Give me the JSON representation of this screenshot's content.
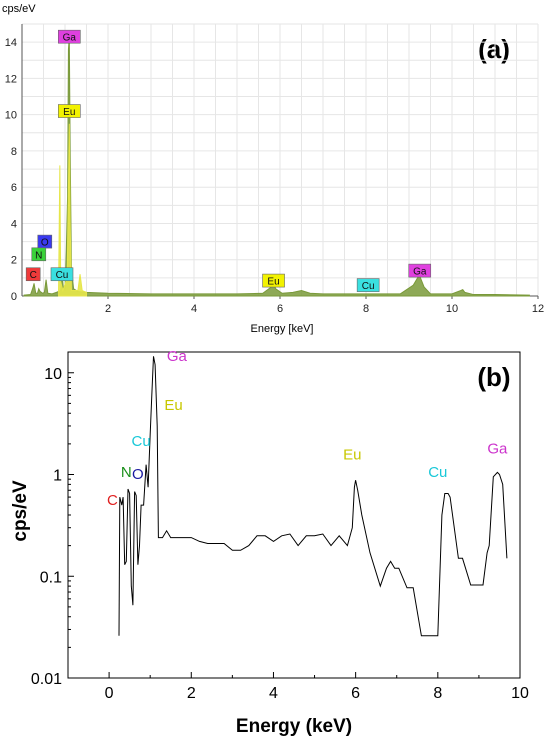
{
  "chart_data": [
    {
      "type": "line",
      "panel": "(a)",
      "ylabel": "cps/eV",
      "xlabel": "Energy [keV]",
      "xlim": [
        0,
        12
      ],
      "ylim": [
        0,
        15
      ],
      "x_ticks": [
        2,
        4,
        6,
        8,
        10,
        12
      ],
      "y_ticks": [
        0,
        2,
        4,
        6,
        8,
        10,
        12,
        14
      ],
      "grid": true,
      "series": [
        {
          "color": "#7a9a3a",
          "x": [
            0.05,
            0.2,
            0.26,
            0.28,
            0.32,
            0.36,
            0.39,
            0.42,
            0.48,
            0.52,
            0.56,
            0.6,
            0.7,
            0.8,
            0.9,
            0.93,
            0.96,
            1.0,
            1.03,
            1.06,
            1.08,
            1.1,
            1.12,
            1.15,
            1.2,
            1.3,
            1.5,
            2,
            3,
            4,
            5,
            5.6,
            5.8,
            5.85,
            5.9,
            6.05,
            6.3,
            6.5,
            6.7,
            7,
            8,
            8.8,
            9.1,
            9.2,
            9.25,
            9.35,
            9.5,
            10,
            10.2,
            10.25,
            10.3,
            10.5,
            11,
            11.8
          ],
          "values": [
            0.05,
            0.08,
            0.5,
            0.7,
            0.15,
            0.15,
            0.4,
            0.25,
            0.15,
            0.2,
            0.9,
            0.15,
            0.12,
            0.2,
            0.3,
            1.2,
            0.5,
            0.3,
            2.5,
            5.5,
            13.6,
            14.3,
            8,
            1.5,
            0.4,
            0.25,
            0.2,
            0.15,
            0.12,
            0.12,
            0.12,
            0.15,
            0.5,
            0.7,
            0.4,
            0.15,
            0.2,
            0.3,
            0.15,
            0.12,
            0.12,
            0.12,
            0.6,
            1.0,
            1.1,
            0.5,
            0.12,
            0.12,
            0.3,
            0.35,
            0.2,
            0.08,
            0.08,
            0.05
          ]
        },
        {
          "color": "#e6e64a",
          "x": [
            0.85,
            0.88,
            0.9,
            0.95,
            1.05,
            1.08,
            1.1,
            1.12,
            1.15,
            1.3,
            1.35,
            1.4,
            1.5
          ],
          "values": [
            0.3,
            7.2,
            0.8,
            0.3,
            1.0,
            6.0,
            9.5,
            4.0,
            0.3,
            0.3,
            1.2,
            0.3,
            0.2
          ]
        }
      ],
      "labels": [
        {
          "text": "Ga",
          "x": 1.1,
          "y": 14.3,
          "color": "#e040e0"
        },
        {
          "text": "Eu",
          "x": 1.1,
          "y": 10.2,
          "color": "#f2f200"
        },
        {
          "text": "O",
          "x": 0.53,
          "y": 3.0,
          "color": "#3a3af0"
        },
        {
          "text": "N",
          "x": 0.39,
          "y": 2.3,
          "color": "#3ad23a"
        },
        {
          "text": "C",
          "x": 0.26,
          "y": 1.2,
          "color": "#f03a3a"
        },
        {
          "text": "Cu",
          "x": 0.93,
          "y": 1.2,
          "color": "#3ae0e0"
        },
        {
          "text": "Eu",
          "x": 5.85,
          "y": 0.85,
          "color": "#f2f200"
        },
        {
          "text": "Cu",
          "x": 8.05,
          "y": 0.6,
          "color": "#3ae0e0"
        },
        {
          "text": "Ga",
          "x": 9.25,
          "y": 1.4,
          "color": "#e040e0"
        }
      ]
    },
    {
      "type": "line",
      "panel": "(b)",
      "ylabel": "cps/eV",
      "xlabel": "Energy (keV)",
      "yscale": "log",
      "xlim": [
        -1,
        10
      ],
      "ylim": [
        0.01,
        16
      ],
      "x_ticks": [
        0,
        2,
        4,
        6,
        8,
        10
      ],
      "y_ticks": [
        0.01,
        0.1,
        1,
        10
      ],
      "grid": false,
      "series": [
        {
          "color": "#000000",
          "x": [
            0.24,
            0.26,
            0.31,
            0.34,
            0.38,
            0.42,
            0.46,
            0.5,
            0.54,
            0.58,
            0.62,
            0.66,
            0.7,
            0.74,
            0.78,
            0.84,
            0.9,
            0.95,
            1.0,
            1.04,
            1.08,
            1.12,
            1.17,
            1.2,
            1.24,
            1.27,
            1.3,
            1.4,
            1.5,
            1.6,
            1.7,
            1.8,
            2.0,
            2.2,
            2.4,
            2.6,
            2.8,
            3.0,
            3.2,
            3.4,
            3.6,
            3.8,
            4.0,
            4.2,
            4.4,
            4.6,
            4.8,
            5.0,
            5.2,
            5.4,
            5.6,
            5.8,
            5.92,
            5.97,
            6.0,
            6.05,
            6.15,
            6.35,
            6.6,
            6.75,
            6.85,
            6.95,
            7.05,
            7.25,
            7.4,
            7.6,
            7.8,
            8.0,
            8.1,
            8.17,
            8.25,
            8.3,
            8.5,
            8.6,
            8.8,
            9.1,
            9.2,
            9.25,
            9.35,
            9.45,
            9.5,
            9.58,
            9.68
          ],
          "values": [
            0.026,
            0.6,
            0.5,
            0.6,
            0.13,
            0.14,
            0.72,
            0.65,
            0.08,
            0.052,
            0.68,
            0.62,
            0.13,
            0.2,
            0.5,
            0.5,
            1.25,
            0.75,
            2.5,
            6.0,
            14.5,
            12.0,
            3.0,
            0.24,
            0.24,
            0.24,
            0.24,
            0.28,
            0.24,
            0.24,
            0.24,
            0.24,
            0.24,
            0.22,
            0.21,
            0.21,
            0.21,
            0.18,
            0.18,
            0.2,
            0.25,
            0.25,
            0.22,
            0.25,
            0.26,
            0.2,
            0.25,
            0.25,
            0.26,
            0.2,
            0.25,
            0.2,
            0.3,
            0.75,
            0.88,
            0.7,
            0.4,
            0.17,
            0.08,
            0.12,
            0.14,
            0.12,
            0.12,
            0.077,
            0.077,
            0.026,
            0.026,
            0.026,
            0.4,
            0.65,
            0.65,
            0.6,
            0.15,
            0.15,
            0.082,
            0.082,
            0.17,
            0.2,
            0.95,
            1.05,
            1.0,
            0.8,
            0.15
          ]
        }
      ],
      "labels": [
        {
          "text": "Ga",
          "x": 1.65,
          "y": 13.0,
          "color": "#cc33cc"
        },
        {
          "text": "Eu",
          "x": 1.57,
          "y": 4.3,
          "color": "#c8c800"
        },
        {
          "text": "Cu",
          "x": 0.78,
          "y": 1.9,
          "color": "#19c8d8"
        },
        {
          "text": "N",
          "x": 0.42,
          "y": 0.95,
          "color": "#1a8f1a"
        },
        {
          "text": "O",
          "x": 0.7,
          "y": 0.9,
          "color": "#1a1aa0"
        },
        {
          "text": "C",
          "x": 0.08,
          "y": 0.5,
          "color": "#e02020"
        },
        {
          "text": "Eu",
          "x": 5.92,
          "y": 1.4,
          "color": "#c8c800"
        },
        {
          "text": "Cu",
          "x": 8.0,
          "y": 0.95,
          "color": "#19c8d8"
        },
        {
          "text": "Ga",
          "x": 9.45,
          "y": 1.6,
          "color": "#cc33cc"
        }
      ]
    }
  ]
}
